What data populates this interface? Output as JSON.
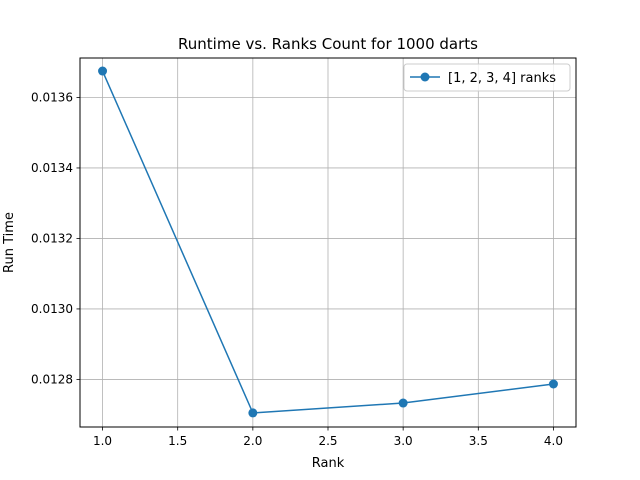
{
  "chart_data": {
    "type": "line",
    "title": "Runtime vs. Ranks Count for 1000 darts",
    "xlabel": "Rank",
    "ylabel": "Run Time",
    "xlim": [
      0.85,
      4.15
    ],
    "ylim": [
      0.012665,
      0.013712
    ],
    "xticks": [
      1.0,
      1.5,
      2.0,
      2.5,
      3.0,
      3.5,
      4.0
    ],
    "xtick_labels": [
      "1.0",
      "1.5",
      "2.0",
      "2.5",
      "3.0",
      "3.5",
      "4.0"
    ],
    "yticks": [
      0.0128,
      0.013,
      0.0132,
      0.0134,
      0.0136
    ],
    "ytick_labels": [
      "0.0128",
      "0.0130",
      "0.0132",
      "0.0134",
      "0.0136"
    ],
    "grid": true,
    "legend_position": "top-right",
    "series": [
      {
        "name": "[1, 2, 3, 4] ranks",
        "color": "#1f77b4",
        "marker": "circle",
        "x": [
          1.0,
          2.0,
          3.0,
          4.0
        ],
        "y": [
          0.013675,
          0.012705,
          0.012733,
          0.012787
        ]
      }
    ]
  }
}
